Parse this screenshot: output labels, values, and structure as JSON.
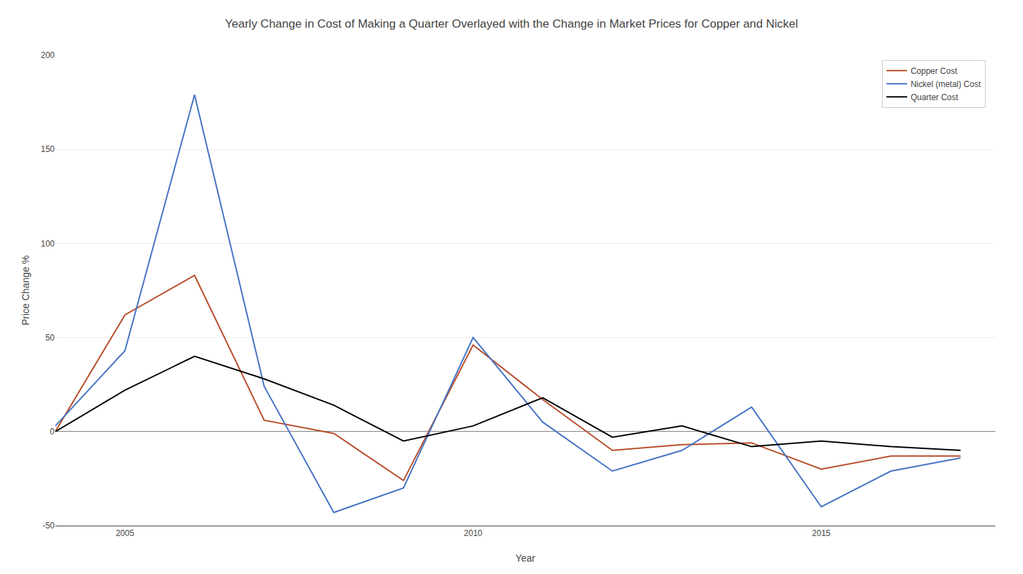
{
  "chart_data": {
    "type": "line",
    "title": "Yearly Change in Cost of Making a Quarter Overlayed with the Change in Market Prices for Copper and Nickel",
    "x_label": "Year",
    "y_label": "Price Change %",
    "x": [
      2004,
      2005,
      2006,
      2007,
      2008,
      2009,
      2010,
      2011,
      2012,
      2013,
      2014,
      2015,
      2016,
      2017
    ],
    "series": [
      {
        "name": "Copper Cost",
        "color": "#b84c2a",
        "values": [
          0,
          62,
          83,
          6,
          -1,
          -26,
          46,
          17,
          -10,
          -7,
          -6,
          -20,
          -13,
          -13
        ]
      },
      {
        "name": "Nickel (metal) Cost",
        "color": "#4472c4",
        "values": [
          3,
          43,
          179,
          24,
          -43,
          -30,
          50,
          5,
          -21,
          -10,
          13,
          -40,
          -21,
          -14
        ]
      },
      {
        "name": "Quarter Cost",
        "color": "#000000",
        "values": [
          0,
          22,
          40,
          28,
          14,
          -5,
          3,
          18,
          -3,
          3,
          -8,
          -5,
          -8,
          -10
        ]
      }
    ],
    "xlim": [
      2004,
      2017.5
    ],
    "xticks": [
      2005,
      2010,
      2015
    ],
    "ylim": [
      -50,
      200
    ],
    "yticks": [
      -50,
      0,
      50,
      100,
      150,
      200
    ],
    "grid": "y",
    "legend": "upper right"
  }
}
